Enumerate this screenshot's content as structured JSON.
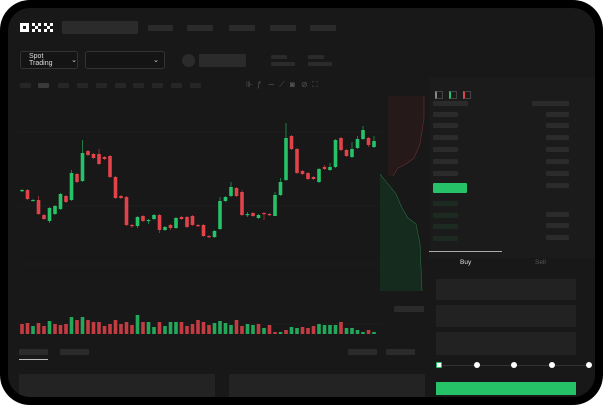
{
  "logo": "OKX",
  "header": {
    "nav_placeholders": 4
  },
  "market": {
    "mode_select": "Spot Trading",
    "mode_chevron": "chevron-down-icon",
    "pair_chevron": "chevron-down-icon"
  },
  "toolbar": {
    "icons": [
      "candle-type-icon",
      "indicator-icon",
      "line-tool-icon",
      "ruler-icon",
      "camera-icon",
      "settings-icon",
      "fullscreen-icon"
    ]
  },
  "orderbook": {
    "view_icons": [
      "book-both-icon",
      "book-buy-icon",
      "book-sell-icon"
    ]
  },
  "trade": {
    "tabs": [
      {
        "label": "Buy",
        "active": true
      },
      {
        "label": "Sell",
        "active": false
      }
    ],
    "slider_percent": 0,
    "slider_stops": [
      0,
      25,
      50,
      75,
      100
    ]
  },
  "colors": {
    "up": "#26c267",
    "down": "#e0434a",
    "bg": "#181818",
    "accent": "#26c267"
  },
  "chart_data": {
    "type": "candlestick",
    "candles": [
      [
        117,
        118,
        119,
        116
      ],
      [
        118,
        109,
        119,
        108
      ],
      [
        108,
        108,
        109,
        107
      ],
      [
        108,
        94,
        112,
        93
      ],
      [
        93,
        89,
        94,
        88
      ],
      [
        87,
        100,
        101,
        85
      ],
      [
        94,
        102,
        103,
        93
      ],
      [
        99,
        114,
        115,
        98
      ],
      [
        112,
        106,
        113,
        105
      ],
      [
        108,
        135,
        138,
        107
      ],
      [
        134,
        126,
        135,
        125
      ],
      [
        127,
        155,
        168,
        126
      ],
      [
        157,
        153,
        158,
        152
      ],
      [
        154,
        150,
        155,
        149
      ],
      [
        154,
        144,
        159,
        143
      ],
      [
        151,
        149,
        152,
        148
      ],
      [
        152,
        131,
        153,
        130
      ],
      [
        131,
        110,
        132,
        109
      ],
      [
        112,
        110,
        113,
        109
      ],
      [
        111,
        83,
        112,
        82
      ],
      [
        83,
        82,
        84,
        80
      ],
      [
        82,
        91,
        92,
        80
      ],
      [
        92,
        87,
        93,
        86
      ],
      [
        88,
        88,
        89,
        84
      ],
      [
        89,
        93,
        94,
        88
      ],
      [
        93,
        78,
        94,
        75
      ],
      [
        78,
        81,
        82,
        77
      ],
      [
        83,
        80,
        84,
        78
      ],
      [
        80,
        90,
        91,
        79
      ],
      [
        91,
        89,
        92,
        88
      ],
      [
        91,
        81,
        92,
        80
      ],
      [
        92,
        83,
        93,
        82
      ],
      [
        83,
        82,
        84,
        81
      ],
      [
        83,
        72,
        84,
        71
      ],
      [
        72,
        71,
        73,
        70
      ],
      [
        71,
        77,
        78,
        70
      ],
      [
        79,
        107,
        111,
        78
      ],
      [
        107,
        111,
        112,
        106
      ],
      [
        112,
        121,
        126,
        111
      ],
      [
        120,
        112,
        121,
        111
      ],
      [
        116,
        93,
        118,
        92
      ],
      [
        93,
        94,
        96,
        91
      ],
      [
        95,
        92,
        96,
        91
      ],
      [
        90,
        93,
        94,
        89
      ],
      [
        95,
        94,
        96,
        88
      ],
      [
        94,
        93,
        95,
        92
      ],
      [
        92,
        113,
        116,
        92
      ],
      [
        113,
        126,
        130,
        112
      ],
      [
        128,
        170,
        185,
        127
      ],
      [
        172,
        159,
        173,
        158
      ],
      [
        159,
        135,
        160,
        134
      ],
      [
        137,
        134,
        138,
        133
      ],
      [
        135,
        129,
        136,
        128
      ],
      [
        131,
        129,
        132,
        128
      ],
      [
        126,
        139,
        140,
        125
      ],
      [
        141,
        139,
        143,
        138
      ],
      [
        138,
        141,
        145,
        137
      ],
      [
        141,
        168,
        169,
        140
      ],
      [
        170,
        158,
        171,
        157
      ],
      [
        158,
        152,
        159,
        151
      ],
      [
        151,
        159,
        166,
        150
      ],
      [
        160,
        169,
        172,
        159
      ],
      [
        169,
        178,
        182,
        168
      ],
      [
        170,
        163,
        171,
        161
      ],
      [
        161,
        167,
        172,
        160
      ]
    ],
    "volume": [
      10,
      11,
      8,
      11,
      8,
      13,
      10,
      9,
      10,
      17,
      14,
      17,
      14,
      12,
      12,
      8,
      10,
      14,
      10,
      12,
      9,
      19,
      12,
      12,
      7,
      12,
      8,
      12,
      12,
      12,
      8,
      10,
      14,
      12,
      9,
      11,
      13,
      11,
      9,
      14,
      8,
      10,
      9,
      10,
      6,
      9,
      2,
      2,
      4,
      7,
      6,
      7,
      6,
      8,
      10,
      9,
      9,
      9,
      12,
      6,
      6,
      4,
      2,
      4,
      2
    ],
    "volume_up": [
      0,
      0,
      1,
      0,
      0,
      1,
      0,
      0,
      0,
      1,
      0,
      1,
      0,
      0,
      0,
      0,
      0,
      0,
      0,
      0,
      0,
      1,
      0,
      1,
      1,
      0,
      1,
      1,
      1,
      0,
      0,
      0,
      0,
      0,
      0,
      1,
      1,
      1,
      1,
      0,
      0,
      1,
      1,
      0,
      1,
      0,
      0,
      1,
      0,
      1,
      1,
      0,
      0,
      0,
      1,
      1,
      1,
      1,
      0,
      1,
      1,
      1,
      1,
      0,
      1
    ],
    "title": "",
    "xlabel": "",
    "ylabel": ""
  }
}
